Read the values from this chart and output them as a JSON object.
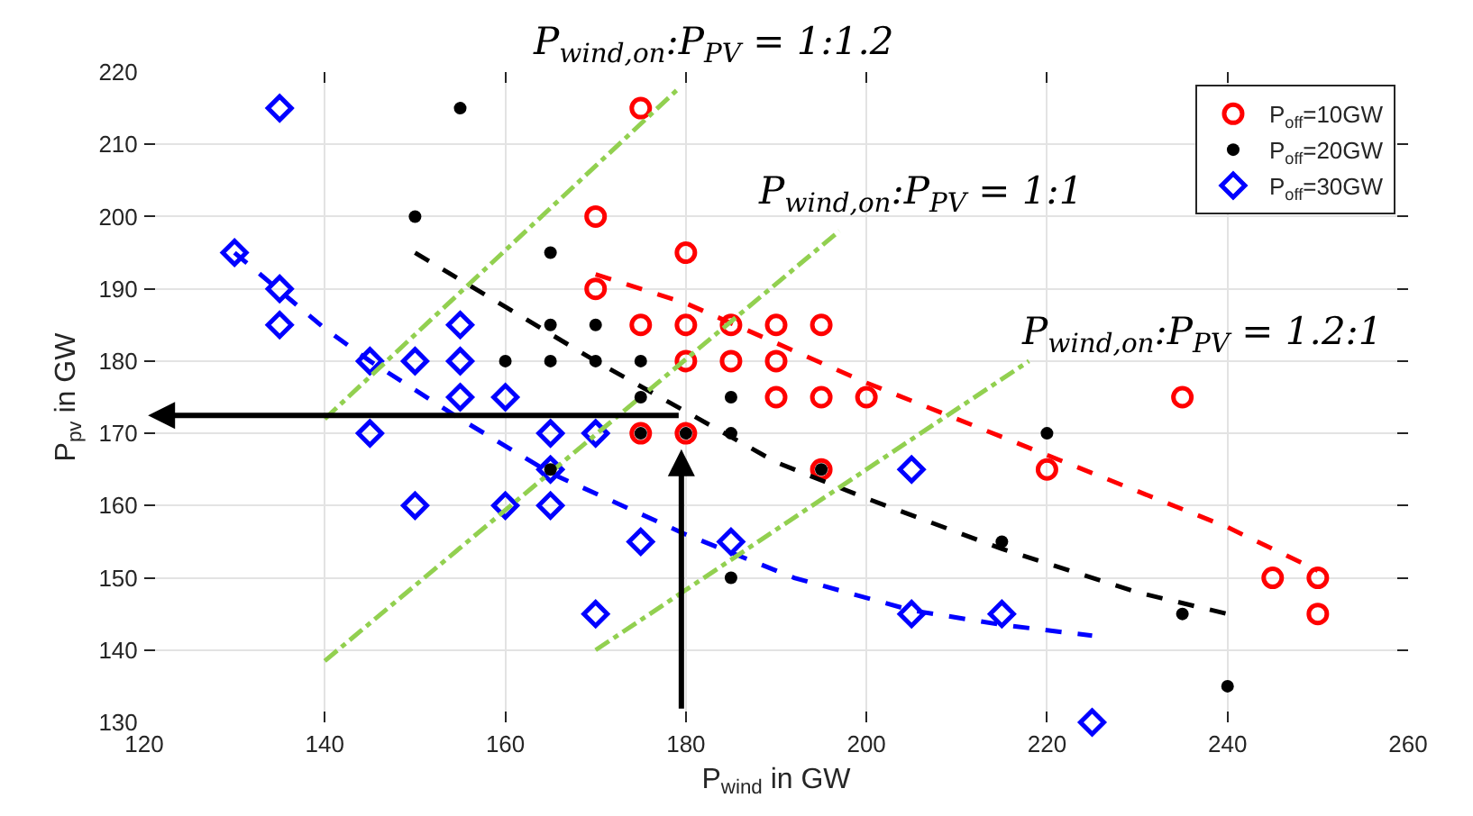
{
  "chart_data": {
    "type": "scatter",
    "xlabel": "P$_{wind}$ in GW",
    "ylabel": "P$_{pv}$ in GW",
    "xlim": [
      120,
      260
    ],
    "xticks": [
      120,
      140,
      160,
      180,
      200,
      220,
      240,
      260
    ],
    "ylim": [
      130,
      220
    ],
    "yticks": [
      130,
      140,
      150,
      160,
      170,
      180,
      190,
      200,
      210,
      220
    ],
    "grid": true,
    "legend": "top right",
    "series": [
      {
        "name": "P$_{off}$=10GW",
        "marker": "circle-open",
        "color": "#ff0000",
        "x": [
          175,
          170,
          180,
          170,
          175,
          180,
          185,
          190,
          195,
          180,
          185,
          190,
          190,
          195,
          200,
          235,
          175,
          180,
          195,
          220,
          245,
          250,
          250
        ],
        "values": [
          215,
          200,
          195,
          190,
          185,
          185,
          185,
          185,
          185,
          180,
          180,
          180,
          175,
          175,
          175,
          175,
          170,
          170,
          165,
          165,
          150,
          150,
          145
        ]
      },
      {
        "name": "P$_{off}$=20GW",
        "marker": "circle",
        "color": "#000000",
        "x": [
          155,
          150,
          165,
          165,
          170,
          160,
          165,
          170,
          175,
          175,
          185,
          175,
          180,
          185,
          220,
          165,
          195,
          215,
          185,
          235,
          240
        ],
        "values": [
          215,
          200,
          195,
          185,
          185,
          180,
          180,
          180,
          180,
          175,
          175,
          170,
          170,
          170,
          170,
          165,
          165,
          155,
          150,
          145,
          135
        ]
      },
      {
        "name": "P$_{off}$=30GW",
        "marker": "diamond-open",
        "color": "#0000ff",
        "x": [
          135,
          130,
          135,
          135,
          145,
          150,
          155,
          155,
          155,
          160,
          145,
          165,
          170,
          165,
          150,
          160,
          165,
          175,
          185,
          170,
          205,
          205,
          215,
          225
        ],
        "values": [
          215,
          195,
          190,
          185,
          180,
          180,
          185,
          180,
          175,
          175,
          170,
          170,
          170,
          165,
          160,
          160,
          160,
          155,
          155,
          145,
          165,
          145,
          145,
          130
        ]
      },
      {
        "type": "line",
        "line_style": "dashed",
        "color": "#ff0000",
        "x": [
          170,
          180,
          200,
          220,
          240,
          250
        ],
        "values": [
          192,
          188,
          177,
          167,
          157,
          151
        ]
      },
      {
        "type": "line",
        "line_style": "dashed",
        "color": "#000000",
        "x": [
          150,
          160,
          170,
          180,
          190,
          200,
          215,
          230,
          240
        ],
        "values": [
          195,
          187.5,
          180,
          173,
          166,
          161,
          154,
          148,
          145
        ]
      },
      {
        "type": "line",
        "line_style": "dashed",
        "color": "#0000ff",
        "x": [
          130,
          140,
          145,
          155,
          165,
          180,
          192,
          205,
          215,
          225
        ],
        "values": [
          195,
          184.5,
          180,
          172,
          164.5,
          156,
          150,
          145.5,
          143.5,
          142
        ]
      },
      {
        "type": "line",
        "line_style": "dashdot",
        "color": "#92d050",
        "x": [
          140,
          179
        ],
        "values": [
          172,
          217.5
        ]
      },
      {
        "type": "line",
        "line_style": "dashdot",
        "color": "#92d050",
        "x": [
          140,
          197
        ],
        "values": [
          138.5,
          198
        ]
      },
      {
        "type": "line",
        "line_style": "dashdot",
        "color": "#92d050",
        "x": [
          170,
          218
        ],
        "values": [
          140,
          180
        ]
      }
    ],
    "annotations": [
      "P$_{wind,on}$:P$_{PV}$ = 1:1.2",
      "P$_{wind,on}$:P$_{PV}$ = 1:1",
      "P$_{wind,on}$:P$_{PV}$ = 1.2:1"
    ]
  }
}
